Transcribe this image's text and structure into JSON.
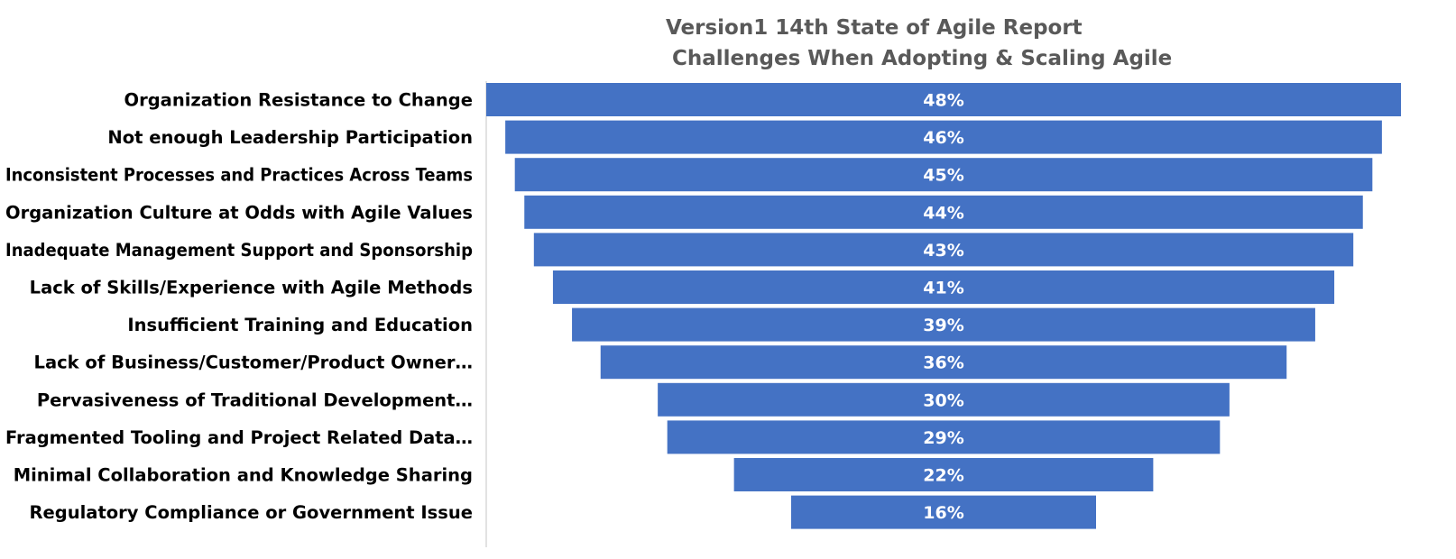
{
  "chart_data": {
    "type": "bar",
    "orientation": "horizontal",
    "layout": "funnel",
    "title": "Version1 14th State of Agile Report",
    "subtitle": "Challenges When Adopting & Scaling Agile",
    "xlabel": "",
    "ylabel": "",
    "grid": false,
    "legend": "none",
    "bar_color": "#4472C4",
    "label_color": "#FFFFFF",
    "xlim": [
      0,
      48
    ],
    "categories": [
      "Organization Resistance to Change",
      "Not enough Leadership Participation",
      "Inconsistent Processes and Practices Across Teams",
      "Organization Culture at Odds with Agile Values",
      "Inadequate Management Support and Sponsorship",
      "Lack of Skills/Experience with Agile Methods",
      "Insufficient Training and Education",
      "Lack of Business/Customer/Product Owner…",
      "Pervasiveness of Traditional Development…",
      "Fragmented Tooling and Project Related Data…",
      "Minimal Collaboration and Knowledge Sharing",
      "Regulatory Compliance or Government Issue"
    ],
    "values": [
      48,
      46,
      45,
      44,
      43,
      41,
      39,
      36,
      30,
      29,
      22,
      16
    ],
    "value_labels": [
      "48%",
      "46%",
      "45%",
      "44%",
      "43%",
      "41%",
      "39%",
      "36%",
      "30%",
      "29%",
      "22%",
      "16%"
    ]
  }
}
